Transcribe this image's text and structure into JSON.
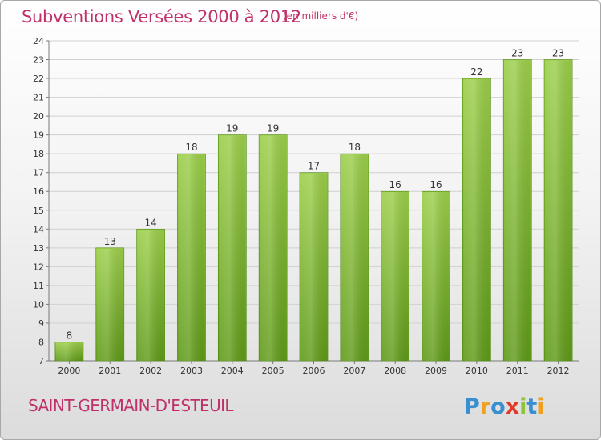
{
  "header": {
    "title": "Subventions Versées 2000 à 2012",
    "unit": "(en milliers d'€)"
  },
  "footer": {
    "commune": "SAINT-GERMAIN-D'ESTEUIL",
    "logo_text": "Proxiti"
  },
  "colors": {
    "title": "#c0306a",
    "bar_top": "#9ccf4a",
    "bar_bottom": "#5f9a18",
    "grid": "#d0d0d0",
    "axis": "#7a7a7a"
  },
  "chart_data": {
    "type": "bar",
    "title": "Subventions Versées 2000 à 2012",
    "subtitle": "(en milliers d'€)",
    "xlabel": "",
    "ylabel": "",
    "categories": [
      "2000",
      "2001",
      "2002",
      "2003",
      "2004",
      "2005",
      "2006",
      "2007",
      "2008",
      "2009",
      "2010",
      "2011",
      "2012"
    ],
    "values": [
      8,
      13,
      14,
      18,
      19,
      19,
      17,
      18,
      16,
      16,
      22,
      23,
      23
    ],
    "ylim": [
      7,
      24
    ],
    "yticks": [
      7,
      8,
      9,
      10,
      11,
      12,
      13,
      14,
      15,
      16,
      17,
      18,
      19,
      20,
      21,
      22,
      23,
      24
    ],
    "grid": true,
    "data_labels": true
  }
}
